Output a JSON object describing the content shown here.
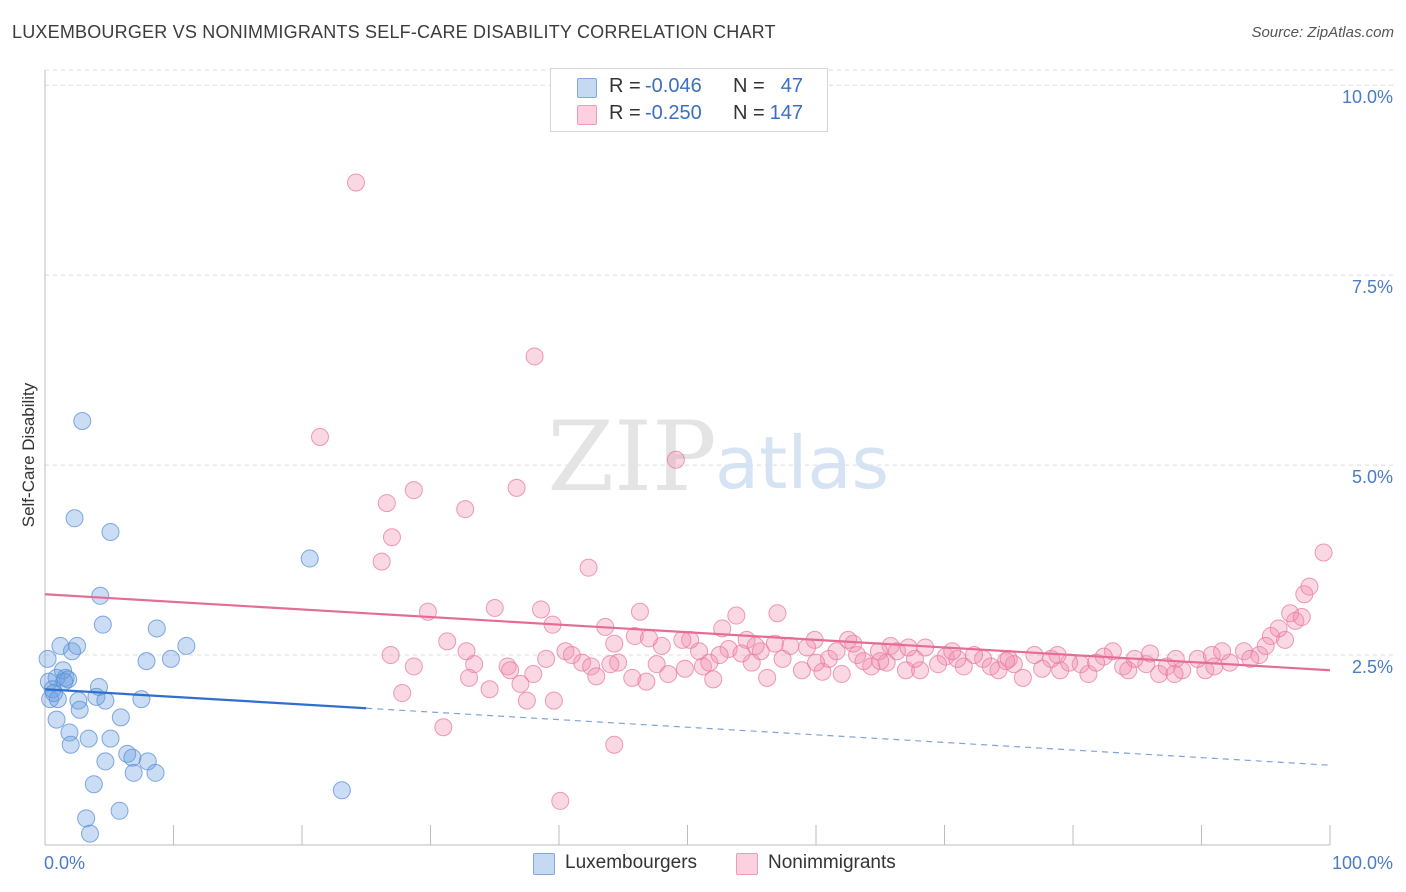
{
  "title": "LUXEMBOURGER VS NONIMMIGRANTS SELF-CARE DISABILITY CORRELATION CHART",
  "source": "Source: ZipAtlas.com",
  "watermark": {
    "zip": "ZIP",
    "atlas": "atlas"
  },
  "legend": [
    {
      "r_label": "R =",
      "r_value": "-0.046",
      "n_label": "N =",
      "n_value": "47",
      "color": "#6a9fdf"
    },
    {
      "r_label": "R =",
      "r_value": "-0.250",
      "n_label": "N =",
      "n_value": "147",
      "color": "#f08fb0"
    }
  ],
  "chart_data": {
    "type": "scatter",
    "title": "LUXEMBOURGER VS NONIMMIGRANTS SELF-CARE DISABILITY CORRELATION CHART",
    "xlabel": "",
    "ylabel": "Self-Care Disability",
    "xlim": [
      0,
      100
    ],
    "ylim": [
      0,
      10.2
    ],
    "x_tick_labels": [
      "0.0%",
      "100.0%"
    ],
    "y_ticks": [
      2.5,
      5.0,
      7.5,
      10.0
    ],
    "y_tick_labels": [
      "2.5%",
      "5.0%",
      "7.5%",
      "10.0%"
    ],
    "grid": "horizontal dashed",
    "legend_position": "top-center",
    "series": [
      {
        "name": "Luxembourgers",
        "color": "#6a9fdf",
        "stroke": "#5a8fd4",
        "trend": {
          "x0": 0,
          "y0": 2.05,
          "x1": 25,
          "y1": 1.8,
          "dash_to_x": 100,
          "dash_to_y": 1.05
        },
        "points": [
          [
            2.9,
            5.58
          ],
          [
            2.3,
            4.3
          ],
          [
            5.1,
            4.12
          ],
          [
            0.9,
            2.2
          ],
          [
            4.3,
            3.28
          ],
          [
            2.1,
            2.55
          ],
          [
            1.2,
            2.62
          ],
          [
            2.5,
            2.62
          ],
          [
            4.5,
            2.9
          ],
          [
            8.7,
            2.85
          ],
          [
            1.4,
            2.3
          ],
          [
            0.3,
            2.15
          ],
          [
            1.6,
            2.2
          ],
          [
            0.6,
            2.05
          ],
          [
            1.8,
            2.18
          ],
          [
            4.2,
            2.08
          ],
          [
            0.4,
            1.92
          ],
          [
            1.0,
            1.92
          ],
          [
            2.6,
            1.9
          ],
          [
            4.0,
            1.95
          ],
          [
            4.7,
            1.9
          ],
          [
            7.5,
            1.92
          ],
          [
            11.0,
            2.62
          ],
          [
            9.8,
            2.45
          ],
          [
            7.9,
            2.42
          ],
          [
            0.9,
            1.65
          ],
          [
            2.7,
            1.78
          ],
          [
            5.9,
            1.68
          ],
          [
            1.9,
            1.48
          ],
          [
            3.4,
            1.4
          ],
          [
            5.1,
            1.4
          ],
          [
            2.0,
            1.32
          ],
          [
            6.4,
            1.2
          ],
          [
            6.8,
            1.15
          ],
          [
            4.7,
            1.1
          ],
          [
            8.0,
            1.1
          ],
          [
            6.9,
            0.95
          ],
          [
            8.6,
            0.95
          ],
          [
            3.8,
            0.8
          ],
          [
            5.8,
            0.45
          ],
          [
            3.2,
            0.35
          ],
          [
            3.5,
            0.15
          ],
          [
            20.6,
            3.77
          ],
          [
            23.1,
            0.72
          ],
          [
            0.2,
            2.45
          ],
          [
            1.5,
            2.15
          ],
          [
            0.7,
            2.0
          ]
        ]
      },
      {
        "name": "Nonimmigrants",
        "color": "#f08fb0",
        "stroke": "#e9799f",
        "trend": {
          "x0": 0,
          "y0": 3.3,
          "x1": 100,
          "y1": 2.3
        },
        "points": [
          [
            24.2,
            8.72
          ],
          [
            38.1,
            6.43
          ],
          [
            21.4,
            5.37
          ],
          [
            49.1,
            5.07
          ],
          [
            26.6,
            4.5
          ],
          [
            32.7,
            4.42
          ],
          [
            27.0,
            4.05
          ],
          [
            28.7,
            4.67
          ],
          [
            36.7,
            4.7
          ],
          [
            26.2,
            3.73
          ],
          [
            42.3,
            3.65
          ],
          [
            29.8,
            3.07
          ],
          [
            35.0,
            3.12
          ],
          [
            38.6,
            3.1
          ],
          [
            46.3,
            3.07
          ],
          [
            39.5,
            2.9
          ],
          [
            43.6,
            2.87
          ],
          [
            31.3,
            2.68
          ],
          [
            32.8,
            2.55
          ],
          [
            26.9,
            2.5
          ],
          [
            28.7,
            2.35
          ],
          [
            33.4,
            2.38
          ],
          [
            36.0,
            2.35
          ],
          [
            41.8,
            2.4
          ],
          [
            44.6,
            2.4
          ],
          [
            47.6,
            2.38
          ],
          [
            49.8,
            2.32
          ],
          [
            51.2,
            2.35
          ],
          [
            55.0,
            2.4
          ],
          [
            58.9,
            2.3
          ],
          [
            40.5,
            2.55
          ],
          [
            42.5,
            2.35
          ],
          [
            45.7,
            2.2
          ],
          [
            48.5,
            2.25
          ],
          [
            52.0,
            2.18
          ],
          [
            56.2,
            2.2
          ],
          [
            60.5,
            2.28
          ],
          [
            62.0,
            2.25
          ],
          [
            64.3,
            2.35
          ],
          [
            67.0,
            2.3
          ],
          [
            68.1,
            2.3
          ],
          [
            71.5,
            2.35
          ],
          [
            74.2,
            2.3
          ],
          [
            76.1,
            2.2
          ],
          [
            79.0,
            2.3
          ],
          [
            81.2,
            2.25
          ],
          [
            84.3,
            2.3
          ],
          [
            86.7,
            2.25
          ],
          [
            88.5,
            2.3
          ],
          [
            90.3,
            2.3
          ],
          [
            92.2,
            2.4
          ],
          [
            94.5,
            2.5
          ],
          [
            96.5,
            2.7
          ],
          [
            97.3,
            2.95
          ],
          [
            98.0,
            3.3
          ],
          [
            99.5,
            3.85
          ],
          [
            98.4,
            3.4
          ],
          [
            96.9,
            3.05
          ],
          [
            95.4,
            2.75
          ],
          [
            91.6,
            2.55
          ],
          [
            88.0,
            2.45
          ],
          [
            85.7,
            2.38
          ],
          [
            83.1,
            2.55
          ],
          [
            80.6,
            2.38
          ],
          [
            78.3,
            2.45
          ],
          [
            75.4,
            2.38
          ],
          [
            73.0,
            2.45
          ],
          [
            70.1,
            2.48
          ],
          [
            67.7,
            2.45
          ],
          [
            65.5,
            2.4
          ],
          [
            63.2,
            2.5
          ],
          [
            61.0,
            2.45
          ],
          [
            58.0,
            2.62
          ],
          [
            55.7,
            2.55
          ],
          [
            53.2,
            2.58
          ],
          [
            50.9,
            2.55
          ],
          [
            48.0,
            2.62
          ],
          [
            45.9,
            2.75
          ],
          [
            52.7,
            2.85
          ],
          [
            54.6,
            2.7
          ],
          [
            56.8,
            2.65
          ],
          [
            59.9,
            2.7
          ],
          [
            62.9,
            2.65
          ],
          [
            65.8,
            2.62
          ],
          [
            68.5,
            2.6
          ],
          [
            72.3,
            2.5
          ],
          [
            77.0,
            2.5
          ],
          [
            82.4,
            2.48
          ],
          [
            86.0,
            2.52
          ],
          [
            89.7,
            2.45
          ],
          [
            93.3,
            2.55
          ],
          [
            95.0,
            2.62
          ],
          [
            91.0,
            2.35
          ],
          [
            87.3,
            2.35
          ],
          [
            84.8,
            2.45
          ],
          [
            81.8,
            2.4
          ],
          [
            79.7,
            2.4
          ],
          [
            77.6,
            2.32
          ],
          [
            75.0,
            2.45
          ],
          [
            73.6,
            2.35
          ],
          [
            71.0,
            2.45
          ],
          [
            69.5,
            2.38
          ],
          [
            66.3,
            2.55
          ],
          [
            64.9,
            2.55
          ],
          [
            63.7,
            2.42
          ],
          [
            61.6,
            2.55
          ],
          [
            59.3,
            2.6
          ],
          [
            57.4,
            2.45
          ],
          [
            54.2,
            2.52
          ],
          [
            51.7,
            2.4
          ],
          [
            50.2,
            2.7
          ],
          [
            47.0,
            2.72
          ],
          [
            44.3,
            2.65
          ],
          [
            41.0,
            2.5
          ],
          [
            38.0,
            2.25
          ],
          [
            37.0,
            2.12
          ],
          [
            36.2,
            2.3
          ],
          [
            34.6,
            2.05
          ],
          [
            27.8,
            2.0
          ],
          [
            31.0,
            1.55
          ],
          [
            37.5,
            1.9
          ],
          [
            39.6,
            1.9
          ],
          [
            44.3,
            1.32
          ],
          [
            40.1,
            0.58
          ],
          [
            33.0,
            2.2
          ],
          [
            42.9,
            2.22
          ],
          [
            44.0,
            2.38
          ],
          [
            46.8,
            2.15
          ],
          [
            49.6,
            2.7
          ],
          [
            52.5,
            2.5
          ],
          [
            55.3,
            2.62
          ],
          [
            60.0,
            2.4
          ],
          [
            62.5,
            2.7
          ],
          [
            65.0,
            2.42
          ],
          [
            67.2,
            2.6
          ],
          [
            70.6,
            2.55
          ],
          [
            74.8,
            2.42
          ],
          [
            78.8,
            2.5
          ],
          [
            83.9,
            2.35
          ],
          [
            87.9,
            2.25
          ],
          [
            90.8,
            2.5
          ],
          [
            93.8,
            2.45
          ],
          [
            96.0,
            2.85
          ],
          [
            97.8,
            3.0
          ],
          [
            57.0,
            3.05
          ],
          [
            53.8,
            3.02
          ],
          [
            39.0,
            2.45
          ]
        ]
      }
    ]
  },
  "bottom_legend": [
    {
      "label": "Luxembourgers",
      "color": "#6a9fdf"
    },
    {
      "label": "Nonimmigrants",
      "color": "#f08fb0"
    }
  ]
}
